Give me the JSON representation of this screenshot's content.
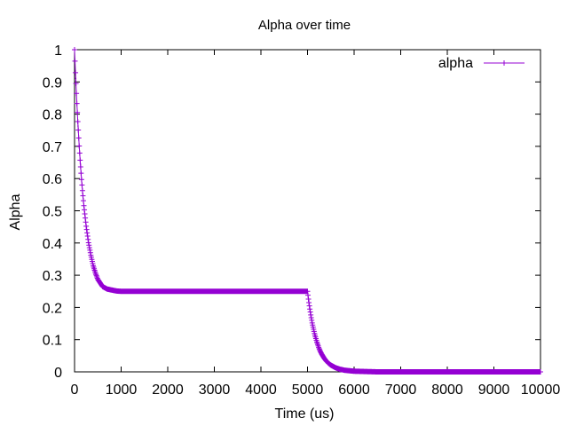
{
  "chart_data": {
    "type": "line",
    "title": "Alpha over time",
    "xlabel": "Time (us)",
    "ylabel": "Alpha",
    "xlim": [
      0,
      10000
    ],
    "ylim": [
      0,
      1
    ],
    "x_ticks": [
      0,
      1000,
      2000,
      3000,
      4000,
      5000,
      6000,
      7000,
      8000,
      9000,
      10000
    ],
    "x_tick_labels": [
      "0",
      "1000",
      "2000",
      "3000",
      "4000",
      "5000",
      "6000",
      "7000",
      "8000",
      "9000",
      "10000"
    ],
    "y_ticks": [
      0,
      0.1,
      0.2,
      0.3,
      0.4,
      0.5,
      0.6,
      0.7,
      0.8,
      0.9,
      1
    ],
    "y_tick_labels": [
      "0",
      "0.1",
      "0.2",
      "0.3",
      "0.4",
      "0.5",
      "0.6",
      "0.7",
      "0.8",
      "0.9",
      "1"
    ],
    "grid": false,
    "legend_position": "top-right",
    "marker": "plus",
    "series": [
      {
        "name": "alpha",
        "color": "#9400d3",
        "x": [
          0,
          25,
          50,
          75,
          100,
          125,
          150,
          175,
          200,
          250,
          300,
          350,
          400,
          450,
          500,
          600,
          700,
          800,
          900,
          1000,
          1200,
          1500,
          2000,
          2500,
          3000,
          3500,
          4000,
          4500,
          4900,
          4950,
          5000,
          5025,
          5050,
          5075,
          5100,
          5150,
          5200,
          5250,
          5300,
          5350,
          5400,
          5450,
          5500,
          5600,
          5700,
          5800,
          6000,
          6500,
          7000,
          7500,
          8000,
          8500,
          9000,
          9500,
          10000
        ],
        "y": [
          1.0,
          0.911,
          0.833,
          0.763,
          0.701,
          0.646,
          0.597,
          0.554,
          0.516,
          0.452,
          0.401,
          0.362,
          0.33,
          0.306,
          0.287,
          0.265,
          0.257,
          0.254,
          0.251,
          0.25,
          0.25,
          0.25,
          0.25,
          0.25,
          0.25,
          0.25,
          0.25,
          0.25,
          0.25,
          0.25,
          0.25,
          0.22,
          0.195,
          0.172,
          0.152,
          0.119,
          0.093,
          0.072,
          0.056,
          0.044,
          0.034,
          0.027,
          0.021,
          0.013,
          0.008,
          0.005,
          0.002,
          0.0,
          0.0,
          0.0,
          0.0,
          0.0,
          0.0,
          0.0,
          0.0
        ]
      }
    ]
  }
}
